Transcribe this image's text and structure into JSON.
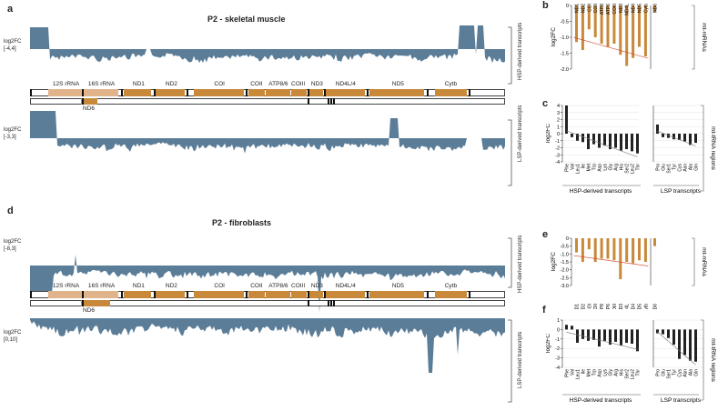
{
  "colors": {
    "coverage": "#5b7d98",
    "gene_main": "#c8893b",
    "gene_light": "#e1b38a",
    "bar_orange": "#c8893b",
    "bar_black": "#222222",
    "trend_red": "#d23b1e",
    "trend_gray": "#777777"
  },
  "panels": {
    "a": "a",
    "b": "b",
    "c": "c",
    "d": "d",
    "e": "e",
    "f": "f"
  },
  "muscle": {
    "title": "P2 - skeletal muscle",
    "hsp_range": "log2FC\n[-4,4]",
    "lsp_range": "log2FC\n[-3,3]",
    "hsp_side": "HSP-derived\ntranscripts",
    "lsp_side": "LSP-derived\ntranscripts"
  },
  "fibro": {
    "title": "P2 - fibroblasts",
    "hsp_range": "log2FC\n[-8,3]",
    "lsp_range": "log2FC\n[0,10]",
    "hsp_side": "HSP-derived\ntranscripts",
    "lsp_side": "LSP-derived\ntranscripts"
  },
  "genome_map": {
    "genes": [
      "12S rRNA",
      "16S rRNA",
      "ND1",
      "ND2",
      "COI",
      "COII",
      "ATP8/6",
      "COIII",
      "ND3",
      "ND4L/4",
      "ND5",
      "Cytb"
    ],
    "lsp_gene": "ND6"
  },
  "chart_data": [
    {
      "panel": "b",
      "type": "bar",
      "ylabel": "log2FC",
      "side_label": "mt-mRNAs",
      "yticks": [
        "0",
        "-0.5",
        "-1.0",
        "-1.5",
        "-2.0"
      ],
      "ylim": [
        -2.0,
        0
      ],
      "categories": [
        "ND1",
        "ND2",
        "COI",
        "COII",
        "ATP8",
        "ATP6",
        "COIII",
        "ND3",
        "ND4L",
        "ND4",
        "ND5",
        "Cytb"
      ],
      "values": [
        -1.15,
        -1.4,
        -0.75,
        -1.0,
        -1.2,
        -1.3,
        -1.2,
        -1.55,
        -1.9,
        -1.65,
        -1.3,
        -1.6
      ],
      "lsp_categories": [
        "ND6"
      ],
      "lsp_values": [
        -0.2
      ]
    },
    {
      "panel": "c",
      "type": "bar",
      "ylabel": "log2FC",
      "side_label": "mt-tRNA regions",
      "yticks": [
        "4",
        "3",
        "2",
        "1",
        "0",
        "-1",
        "-2",
        "-3",
        "-4"
      ],
      "ylim": [
        -4,
        4
      ],
      "hsp_title": "HSP-derived transcripts",
      "lsp_title": "LSP transcripts",
      "hsp_categories": [
        "Phe",
        "Val",
        "Leu1",
        "Ile",
        "Met",
        "Trp",
        "Asp",
        "Lys",
        "Gly",
        "Arg",
        "His",
        "Ser2",
        "Leu2",
        "Thr"
      ],
      "hsp_values": [
        4.0,
        -0.5,
        -1.0,
        -1.2,
        -2.2,
        -1.5,
        -2.0,
        -1.7,
        -2.2,
        -2.0,
        -2.4,
        -2.2,
        -2.5,
        -2.8
      ],
      "lsp_categories": [
        "Pro",
        "Glu",
        "Ser1",
        "Tyr",
        "Cys",
        "Asn",
        "Ala",
        "Gln"
      ],
      "lsp_values": [
        1.3,
        -0.5,
        -0.6,
        -0.8,
        -0.9,
        -1.1,
        -1.6,
        -1.3
      ]
    },
    {
      "panel": "e",
      "type": "bar",
      "ylabel": "log2FC",
      "side_label": "mt-mRNAs",
      "yticks": [
        "0",
        "-0.5",
        "-1.0",
        "-1.5",
        "-2.0",
        "-2.5",
        "-3.0"
      ],
      "ylim": [
        -3.0,
        0
      ],
      "categories": [
        "ND1",
        "ND2",
        "COI",
        "COII",
        "ATP8",
        "ATP6",
        "COIII",
        "ND3",
        "ND4L",
        "ND4",
        "ND5",
        "Cytb"
      ],
      "values": [
        -0.9,
        -1.5,
        -0.7,
        -1.5,
        -1.3,
        -1.3,
        -1.4,
        -2.6,
        -1.5,
        -1.6,
        -1.4,
        -1.5
      ],
      "lsp_categories": [
        "ND6"
      ],
      "lsp_values": [
        -0.5
      ]
    },
    {
      "panel": "f",
      "type": "bar",
      "ylabel": "log2FC",
      "side_label": "mt-tRNA regions",
      "yticks": [
        "1",
        "0",
        "-1",
        "-2",
        "-3",
        "-4"
      ],
      "ylim": [
        -4,
        1
      ],
      "hsp_title": "HSP-derived transcripts",
      "lsp_title": "LSP transcripts",
      "hsp_categories": [
        "Phe",
        "Val",
        "Leu1",
        "Ile",
        "Met",
        "Trp",
        "Asp",
        "Lys",
        "Gly",
        "Arg",
        "His",
        "Ser2",
        "Leu2",
        "Thr"
      ],
      "hsp_values": [
        0.5,
        0.4,
        -1.4,
        -1.0,
        -1.2,
        -1.1,
        -1.8,
        -1.2,
        -1.6,
        -1.3,
        -1.7,
        -1.4,
        -1.5,
        -2.3
      ],
      "lsp_categories": [
        "Pro",
        "Glu",
        "Ser1",
        "Tyr",
        "Cys",
        "Asn",
        "Ala",
        "Gln"
      ],
      "lsp_values": [
        -0.4,
        -0.5,
        -0.9,
        -1.6,
        -3.1,
        -2.7,
        -3.3,
        -3.4
      ]
    }
  ]
}
